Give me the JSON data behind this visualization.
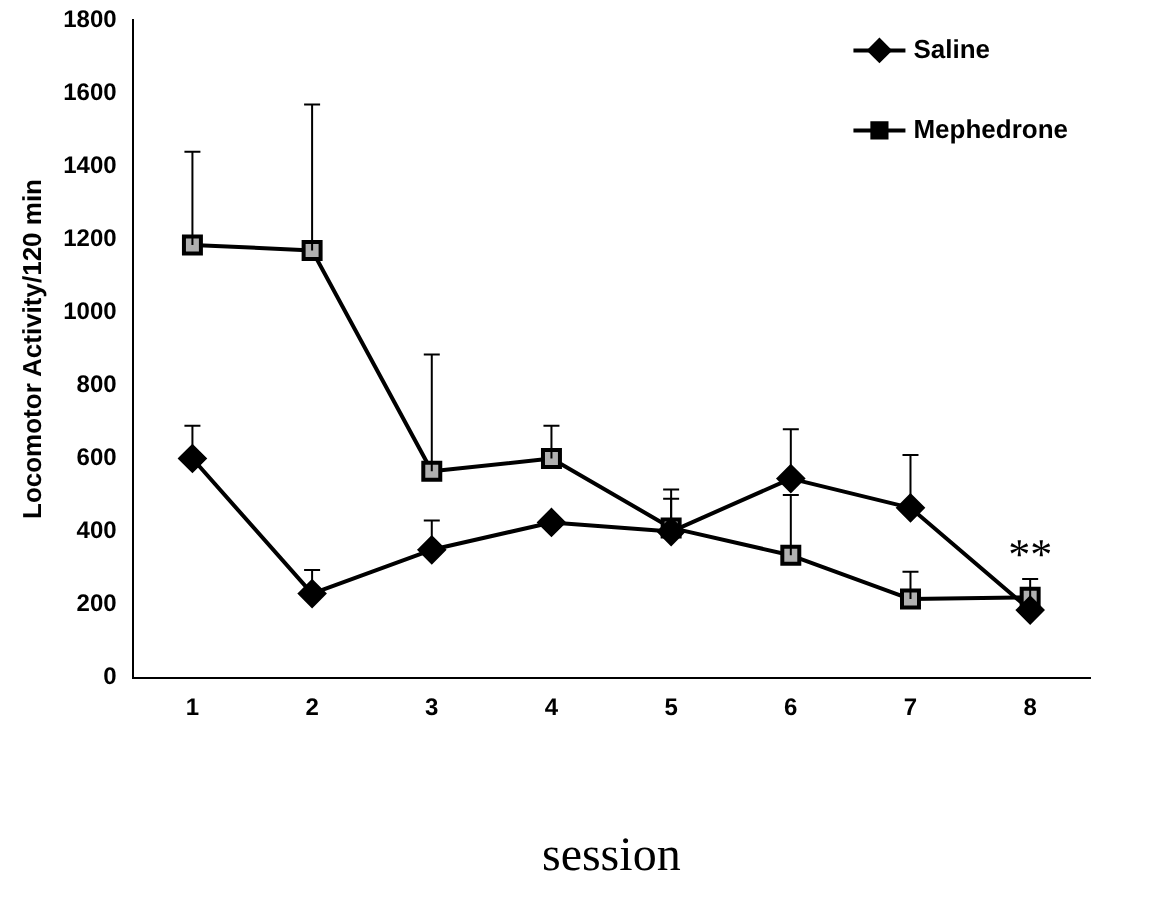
{
  "chart_data": {
    "type": "line",
    "xlabel": "session",
    "ylabel": "Locomotor Activity/120 min",
    "categories": [
      "1",
      "2",
      "3",
      "4",
      "5",
      "6",
      "7",
      "8"
    ],
    "series": [
      {
        "name": "Saline",
        "color": "#000000",
        "marker": "diamond",
        "values": [
          600,
          230,
          350,
          425,
          400,
          545,
          465,
          185
        ],
        "errors": [
          [
            600,
            690
          ],
          [
            230,
            295
          ],
          [
            350,
            430
          ],
          null,
          [
            400,
            490
          ],
          [
            545,
            680
          ],
          [
            465,
            610
          ],
          null
        ]
      },
      {
        "name": "Mephedrone",
        "color": "#000000",
        "marker": "square",
        "values": [
          1185,
          1170,
          565,
          600,
          410,
          335,
          215,
          220
        ],
        "errors": [
          [
            1185,
            1440
          ],
          [
            1170,
            1570
          ],
          [
            565,
            885
          ],
          [
            600,
            690
          ],
          [
            410,
            515
          ],
          [
            335,
            500
          ],
          [
            215,
            290
          ],
          [
            220,
            270
          ]
        ]
      }
    ],
    "ylim": [
      0,
      1800
    ],
    "yticks": [
      0,
      200,
      400,
      600,
      800,
      1000,
      1200,
      1400,
      1600,
      1800
    ],
    "legend": "top right",
    "grid": false,
    "annotations": [
      {
        "text": "**",
        "x": "8",
        "y": 270
      }
    ]
  }
}
